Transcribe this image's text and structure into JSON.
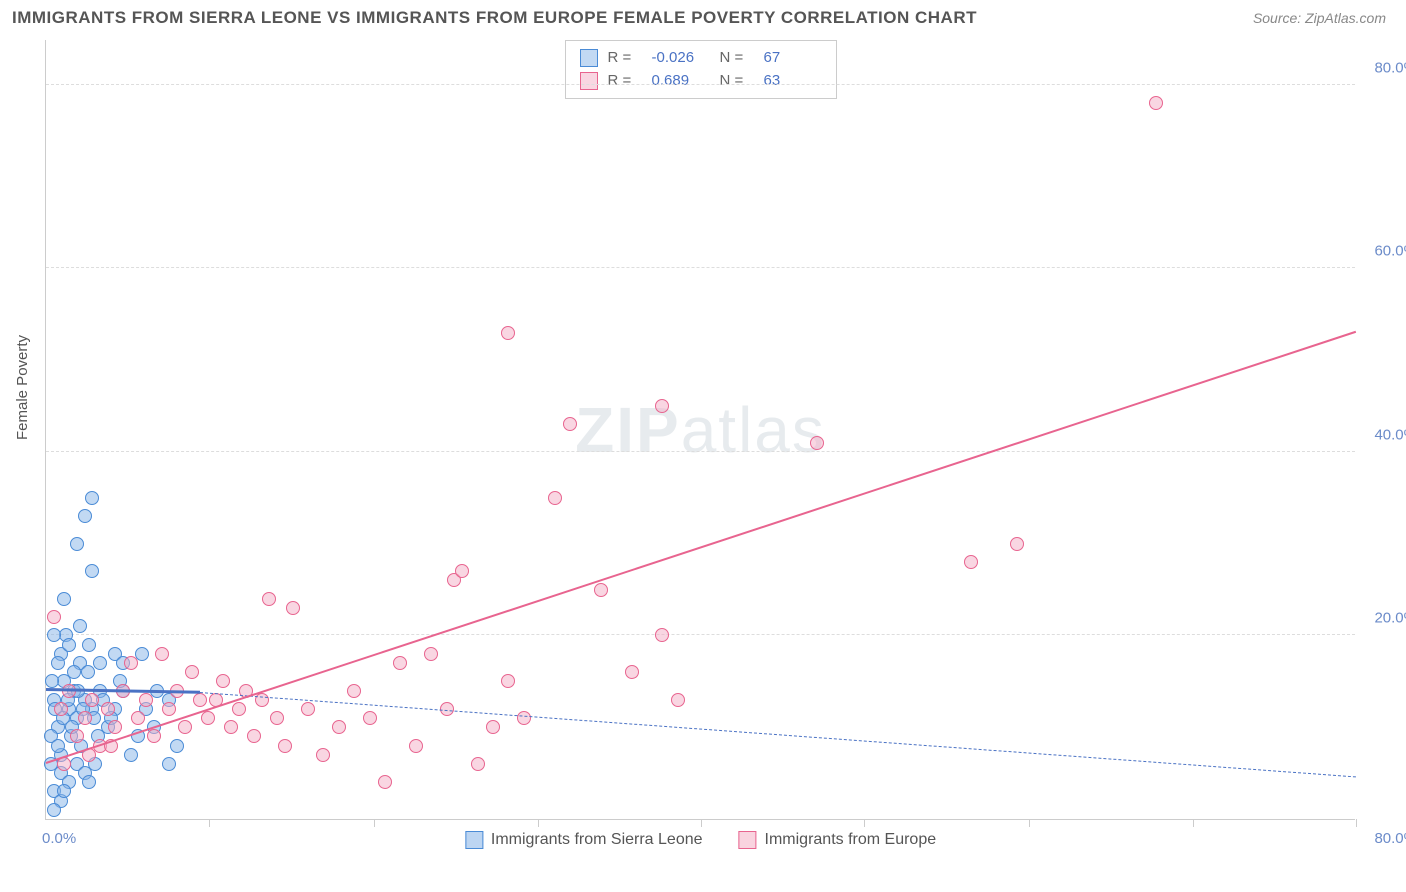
{
  "header": {
    "title": "IMMIGRANTS FROM SIERRA LEONE VS IMMIGRANTS FROM EUROPE FEMALE POVERTY CORRELATION CHART",
    "source_prefix": "Source: ",
    "source": "ZipAtlas.com"
  },
  "chart": {
    "type": "scatter",
    "y_axis_title": "Female Poverty",
    "xlim": [
      0,
      85
    ],
    "ylim": [
      0,
      85
    ],
    "x_ticks": [
      0,
      10.6,
      21.25,
      31.9,
      42.5,
      53.1,
      63.75,
      74.4,
      85
    ],
    "y_gridlines": [
      20,
      40,
      60,
      80
    ],
    "y_tick_labels": [
      "20.0%",
      "40.0%",
      "60.0%",
      "80.0%"
    ],
    "origin_label": "0.0%",
    "x_end_label": "80.0%",
    "grid_color": "#dddddd",
    "axis_color": "#cccccc",
    "background_color": "#ffffff",
    "axis_label_color": "#6b8bc9",
    "axis_label_fontsize": 15
  },
  "watermark": {
    "bold": "ZIP",
    "light": "atlas"
  },
  "series": [
    {
      "name": "Immigrants from Sierra Leone",
      "marker_border": "#4a8bd6",
      "marker_fill": "rgba(133,179,232,0.5)",
      "marker_radius": 7,
      "r_label": "R =",
      "r_value": "-0.026",
      "n_label": "N =",
      "n_value": "67",
      "trend": {
        "x1": 0,
        "y1": 14.0,
        "x2": 10,
        "y2": 13.7,
        "x1_ext": 10,
        "y1_ext": 13.7,
        "x2_ext": 85,
        "y2_ext": 4.5,
        "color": "#4a72c4",
        "solid_width": 3,
        "dash_width": 1
      },
      "points": [
        [
          0.5,
          13
        ],
        [
          0.8,
          10
        ],
        [
          1.0,
          18
        ],
        [
          0.5,
          3
        ],
        [
          1.0,
          7
        ],
        [
          1.2,
          15
        ],
        [
          1.5,
          12
        ],
        [
          1.3,
          20
        ],
        [
          1.6,
          9
        ],
        [
          1.0,
          5
        ],
        [
          1.8,
          14
        ],
        [
          2.0,
          11
        ],
        [
          2.2,
          17
        ],
        [
          2.5,
          13
        ],
        [
          2.3,
          8
        ],
        [
          2.8,
          19
        ],
        [
          3.0,
          12
        ],
        [
          3.0,
          27
        ],
        [
          3.2,
          6
        ],
        [
          3.5,
          14
        ],
        [
          2.0,
          30
        ],
        [
          2.5,
          33
        ],
        [
          3.0,
          35
        ],
        [
          1.2,
          24
        ],
        [
          0.5,
          20
        ],
        [
          0.8,
          17
        ],
        [
          1.5,
          19
        ],
        [
          1.8,
          16
        ],
        [
          2.2,
          21
        ],
        [
          4.0,
          10
        ],
        [
          4.5,
          18
        ],
        [
          4.5,
          12
        ],
        [
          5.0,
          14
        ],
        [
          5.5,
          7
        ],
        [
          5.0,
          17
        ],
        [
          6.0,
          9
        ],
        [
          6.2,
          18
        ],
        [
          6.5,
          12
        ],
        [
          7.0,
          10
        ],
        [
          7.2,
          14
        ],
        [
          8.0,
          6
        ],
        [
          8.0,
          13
        ],
        [
          8.5,
          8
        ],
        [
          1.0,
          2
        ],
        [
          1.5,
          4
        ],
        [
          2.0,
          6
        ],
        [
          2.5,
          5
        ],
        [
          0.3,
          9
        ],
        [
          0.6,
          12
        ],
        [
          0.4,
          15
        ],
        [
          0.8,
          8
        ],
        [
          1.1,
          11
        ],
        [
          1.4,
          13
        ],
        [
          1.7,
          10
        ],
        [
          2.1,
          14
        ],
        [
          2.4,
          12
        ],
        [
          2.7,
          16
        ],
        [
          3.1,
          11
        ],
        [
          3.4,
          9
        ],
        [
          3.7,
          13
        ],
        [
          4.2,
          11
        ],
        [
          0.5,
          1
        ],
        [
          1.2,
          3
        ],
        [
          2.8,
          4
        ],
        [
          3.5,
          17
        ],
        [
          4.8,
          15
        ],
        [
          0.3,
          6
        ]
      ]
    },
    {
      "name": "Immigrants from Europe",
      "marker_border": "#e8648f",
      "marker_fill": "rgba(244,174,197,0.5)",
      "marker_radius": 7,
      "r_label": "R =",
      "r_value": "0.689",
      "n_label": "N =",
      "n_value": "63",
      "trend": {
        "x1": 0,
        "y1": 6.0,
        "x2": 85,
        "y2": 53.0,
        "color": "#e8648f",
        "solid_width": 2.5
      },
      "points": [
        [
          1.0,
          12
        ],
        [
          1.5,
          14
        ],
        [
          2.0,
          9
        ],
        [
          2.5,
          11
        ],
        [
          3.0,
          13
        ],
        [
          3.5,
          8
        ],
        [
          0.5,
          22
        ],
        [
          4.0,
          12
        ],
        [
          4.5,
          10
        ],
        [
          5.0,
          14
        ],
        [
          5.5,
          17
        ],
        [
          6.0,
          11
        ],
        [
          6.5,
          13
        ],
        [
          7.0,
          9
        ],
        [
          7.5,
          18
        ],
        [
          8.0,
          12
        ],
        [
          8.5,
          14
        ],
        [
          9.0,
          10
        ],
        [
          9.5,
          16
        ],
        [
          10.0,
          13
        ],
        [
          10.5,
          11
        ],
        [
          11.0,
          13
        ],
        [
          11.5,
          15
        ],
        [
          12.0,
          10
        ],
        [
          12.5,
          12
        ],
        [
          13.0,
          14
        ],
        [
          13.5,
          9
        ],
        [
          14.0,
          13
        ],
        [
          14.5,
          24
        ],
        [
          15.0,
          11
        ],
        [
          15.5,
          8
        ],
        [
          16.0,
          23
        ],
        [
          17.0,
          12
        ],
        [
          18.0,
          7
        ],
        [
          19.0,
          10
        ],
        [
          20.0,
          14
        ],
        [
          21.0,
          11
        ],
        [
          22.0,
          4
        ],
        [
          23.0,
          17
        ],
        [
          24.0,
          8
        ],
        [
          25.0,
          18
        ],
        [
          26.0,
          12
        ],
        [
          26.5,
          26
        ],
        [
          27.0,
          27
        ],
        [
          28.0,
          6
        ],
        [
          29.0,
          10
        ],
        [
          30.0,
          15
        ],
        [
          30.0,
          53
        ],
        [
          31.0,
          11
        ],
        [
          33.0,
          35
        ],
        [
          34.0,
          43
        ],
        [
          36.0,
          25
        ],
        [
          38.0,
          16
        ],
        [
          40.0,
          45
        ],
        [
          40.0,
          20
        ],
        [
          41.0,
          13
        ],
        [
          50.0,
          41
        ],
        [
          60.0,
          28
        ],
        [
          63.0,
          30
        ],
        [
          72.0,
          78
        ],
        [
          1.2,
          6
        ],
        [
          2.8,
          7
        ],
        [
          4.2,
          8
        ]
      ]
    }
  ],
  "legend_bottom": {
    "items": [
      {
        "label": "Immigrants from Sierra Leone",
        "border": "#4a8bd6",
        "fill": "rgba(133,179,232,0.55)"
      },
      {
        "label": "Immigrants from Europe",
        "border": "#e8648f",
        "fill": "rgba(244,174,197,0.55)"
      }
    ]
  }
}
